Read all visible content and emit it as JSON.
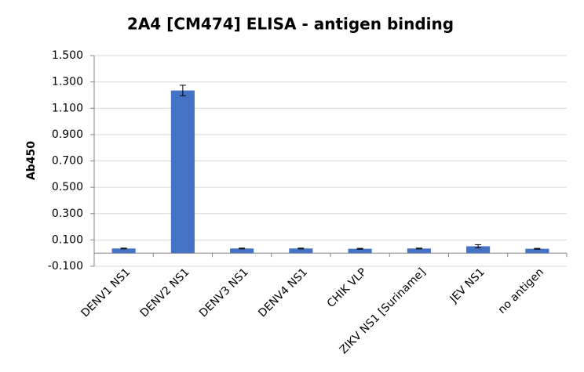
{
  "chart_data": {
    "type": "bar",
    "title": "2A4 [CM474] ELISA - antigen binding",
    "ylabel": "Ab450",
    "categories": [
      "DENV1 NS1",
      "DENV2 NS1",
      "DENV3 NS1",
      "DENV4 NS1",
      "CHIK VLP",
      "ZIKV NS1 [Suriname]",
      "JEV NS1",
      "no antigen"
    ],
    "values": [
      0.035,
      1.235,
      0.035,
      0.035,
      0.033,
      0.035,
      0.052,
      0.033
    ],
    "errors": [
      0.003,
      0.04,
      0.003,
      0.003,
      0.003,
      0.003,
      0.012,
      0.003
    ],
    "color": "#4472c4",
    "ylim": [
      -0.1,
      1.5
    ],
    "yticks": [
      {
        "value": -0.1,
        "label": "-0.100"
      },
      {
        "value": 0.1,
        "label": "0.100"
      },
      {
        "value": 0.3,
        "label": "0.300"
      },
      {
        "value": 0.5,
        "label": "0.500"
      },
      {
        "value": 0.7,
        "label": "0.700"
      },
      {
        "value": 0.9,
        "label": "0.900"
      },
      {
        "value": 1.1,
        "label": "1.100"
      },
      {
        "value": 1.3,
        "label": "1.300"
      },
      {
        "value": 1.5,
        "label": "1.500"
      }
    ],
    "grid": true
  }
}
